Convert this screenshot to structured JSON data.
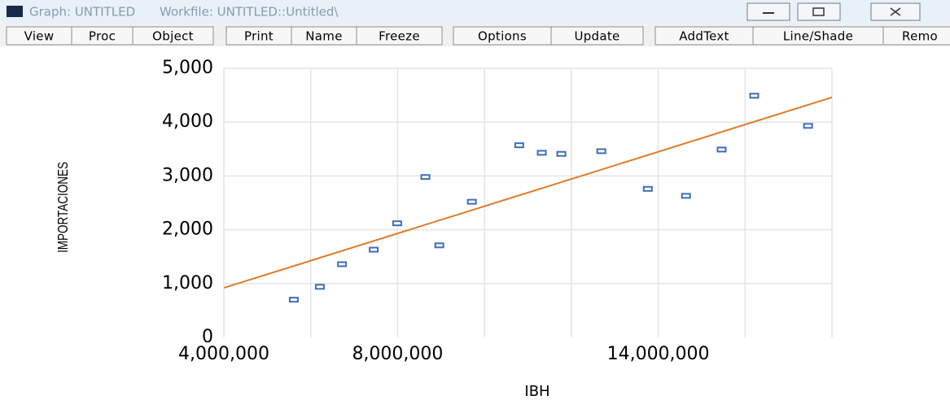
{
  "window": {
    "title": "Graph: UNTITLED",
    "workfile": "Workfile: UNTITLED::Untitled\\"
  },
  "toolbar": [
    "View",
    "Proc",
    "Object",
    "Print",
    "Name",
    "Freeze",
    "Options",
    "Update",
    "AddText",
    "Line/Shade",
    "Remo"
  ],
  "chart_data": {
    "type": "scatter",
    "xlabel": "IBH",
    "ylabel": "IMPORTACIONES",
    "xlim": [
      4000000,
      18000000
    ],
    "ylim": [
      0,
      5000
    ],
    "xticks": [
      {
        "value": 4000000,
        "label": "4,000,000"
      },
      {
        "value": 6000000,
        "label": null
      },
      {
        "value": 8000000,
        "label": "8,000,000"
      },
      {
        "value": 10000000,
        "label": null
      },
      {
        "value": 12000000,
        "label": null
      },
      {
        "value": 14000000,
        "label": "14,000,000"
      },
      {
        "value": 16000000,
        "label": null
      },
      {
        "value": 18000000,
        "label": null
      }
    ],
    "yticks": [
      0,
      {
        "value": 1000,
        "label": "1,000"
      },
      {
        "value": 2000,
        "label": "2,000"
      },
      {
        "value": 3000,
        "label": "3,000"
      },
      {
        "value": 4000,
        "label": "4,000"
      },
      {
        "value": 5000,
        "label": "5,000"
      }
    ],
    "grid": true,
    "points": {
      "color": "#3d6db5",
      "x": [
        5610000,
        6210000,
        6720000,
        7450000,
        7990000,
        8640000,
        8960000,
        9710000,
        10800000,
        11320000,
        11770000,
        12690000,
        13760000,
        14640000,
        15460000,
        16210000,
        17450000
      ],
      "values": [
        700,
        940,
        1360,
        1630,
        2120,
        2980,
        1710,
        2520,
        3570,
        3430,
        3410,
        3460,
        2760,
        2630,
        3490,
        4490,
        3930
      ]
    },
    "fit_line": {
      "color": "#e07b27",
      "x": [
        4000000,
        18000000
      ],
      "values": [
        920,
        4460
      ]
    }
  }
}
